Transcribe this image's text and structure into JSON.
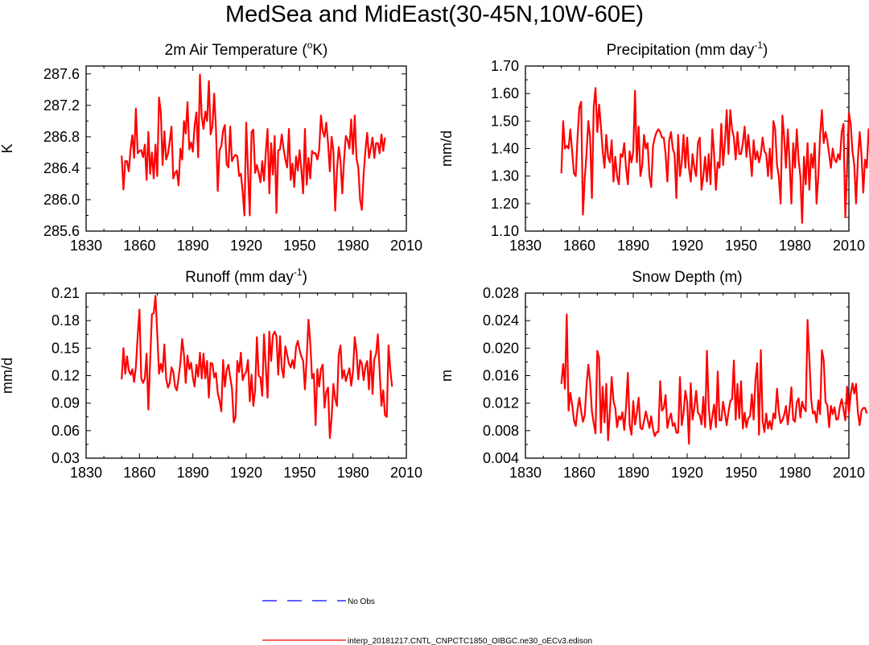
{
  "title": "MedSea and MidEast(30-45N,10W-60E)",
  "colors": {
    "model": "#ff0000",
    "obs": "#0000ff",
    "axis": "#000000"
  },
  "legend": [
    {
      "label": "No Obs",
      "color": "#0000ff",
      "style": "dashed"
    },
    {
      "label": "interp_20181217.CNTL_CNPCTC1850_OIBGC.ne30_oECv3.edison",
      "color": "#ff0000",
      "style": "solid"
    }
  ],
  "chart_data": [
    {
      "type": "line",
      "title": "2m Air Temperature (",
      "title_sup": "o",
      "title_tail": "K)",
      "xlabel": "",
      "ylabel": "K",
      "xlim": [
        1830,
        2010
      ],
      "ylim": [
        285.6,
        287.7
      ],
      "xticks": [
        1830,
        1860,
        1890,
        1920,
        1950,
        1980,
        2010
      ],
      "xtick_labels": [
        "1830",
        "1860",
        "1890",
        "1920",
        "1950",
        "1980",
        "2010"
      ],
      "yticks": [
        285.6,
        286.0,
        286.4,
        286.8,
        287.2,
        287.6
      ],
      "ytick_labels": [
        "285.6",
        "286.0",
        "286.4",
        "286.8",
        "287.2",
        "287.6"
      ],
      "x_start": 1850,
      "series": [
        {
          "name": "interp_20181217.CNTL_CNPCTC1850_OIBGC.ne30_oECv3.edison",
          "values": [
            286.56,
            286.13,
            286.49,
            286.49,
            286.36,
            286.64,
            286.82,
            286.53,
            287.16,
            286.59,
            286.62,
            286.63,
            286.54,
            286.7,
            286.25,
            286.86,
            286.33,
            286.6,
            286.27,
            286.7,
            286.3,
            287.3,
            287.11,
            286.44,
            286.87,
            286.51,
            286.58,
            286.74,
            286.93,
            286.27,
            286.34,
            286.37,
            286.18,
            286.65,
            286.51,
            287.0,
            286.84,
            287.24,
            286.64,
            286.73,
            286.61,
            286.94,
            287.11,
            286.54,
            287.59,
            287.06,
            286.9,
            287.12,
            287.0,
            287.51,
            286.83,
            286.93,
            287.35,
            286.9,
            286.11,
            286.63,
            286.68,
            286.88,
            286.95,
            286.45,
            286.41,
            286.93,
            286.49,
            286.54,
            286.57,
            286.55,
            286.3,
            286.33,
            286.1,
            285.8,
            286.98,
            286.37,
            285.8,
            286.86,
            286.89,
            286.34,
            286.44,
            286.34,
            286.22,
            286.49,
            286.24,
            286.6,
            286.9,
            286.08,
            286.72,
            286.32,
            286.81,
            285.83,
            286.63,
            286.64,
            286.83,
            286.65,
            286.51,
            286.41,
            286.9,
            286.25,
            286.46,
            286.16,
            286.55,
            286.37,
            286.63,
            286.38,
            286.08,
            286.9,
            286.19,
            286.53,
            286.27,
            286.62,
            286.59,
            286.59,
            286.51,
            286.63,
            287.07,
            286.87,
            286.8,
            286.98,
            286.72,
            286.36,
            286.8,
            286.62,
            285.86,
            286.37,
            286.67,
            286.49,
            286.08,
            286.51,
            286.81,
            286.76,
            286.65,
            287.02,
            286.58,
            287.07,
            286.52,
            286.41,
            286.0,
            285.87,
            286.32,
            286.63,
            286.85,
            286.53,
            286.65,
            286.79,
            286.53,
            286.72,
            286.72,
            286.59,
            286.83,
            286.62,
            286.79
          ]
        }
      ]
    },
    {
      "type": "line",
      "title": "Precipitation (mm day",
      "title_sup": "-1",
      "title_tail": ")",
      "xlabel": "",
      "ylabel": "mm/d",
      "xlim": [
        1830,
        2010
      ],
      "ylim": [
        1.1,
        1.7
      ],
      "xticks": [
        1830,
        1860,
        1890,
        1920,
        1950,
        1980,
        2010
      ],
      "xtick_labels": [
        "1830",
        "1860",
        "1890",
        "1920",
        "1950",
        "1980",
        "2010"
      ],
      "yticks": [
        1.1,
        1.2,
        1.3,
        1.4,
        1.5,
        1.6,
        1.7
      ],
      "ytick_labels": [
        "1.10",
        "1.20",
        "1.30",
        "1.40",
        "1.50",
        "1.60",
        "1.70"
      ],
      "x_start": 1850,
      "series": [
        {
          "name": "interp_20181217.CNTL_CNPCTC1850_OIBGC.ne30_oECv3.edison",
          "values": [
            1.31,
            1.5,
            1.4,
            1.41,
            1.4,
            1.47,
            1.39,
            1.31,
            1.3,
            1.44,
            1.55,
            1.57,
            1.16,
            1.29,
            1.38,
            1.5,
            1.44,
            1.22,
            1.55,
            1.62,
            1.46,
            1.56,
            1.48,
            1.39,
            1.33,
            1.45,
            1.37,
            1.35,
            1.43,
            1.28,
            1.37,
            1.3,
            1.27,
            1.38,
            1.37,
            1.42,
            1.33,
            1.27,
            1.39,
            1.35,
            1.39,
            1.61,
            1.35,
            1.48,
            1.3,
            1.34,
            1.45,
            1.4,
            1.42,
            1.3,
            1.26,
            1.41,
            1.44,
            1.46,
            1.47,
            1.46,
            1.44,
            1.44,
            1.38,
            1.28,
            1.43,
            1.46,
            1.4,
            1.38,
            1.22,
            1.45,
            1.3,
            1.35,
            1.45,
            1.33,
            1.44,
            1.33,
            1.28,
            1.38,
            1.33,
            1.3,
            1.42,
            1.44,
            1.25,
            1.3,
            1.37,
            1.28,
            1.38,
            1.27,
            1.47,
            1.38,
            1.25,
            1.35,
            1.33,
            1.49,
            1.34,
            1.42,
            1.54,
            1.38,
            1.54,
            1.47,
            1.44,
            1.36,
            1.46,
            1.38,
            1.38,
            1.42,
            1.48,
            1.37,
            1.45,
            1.38,
            1.3,
            1.43,
            1.36,
            1.39,
            1.35,
            1.38,
            1.44,
            1.39,
            1.38,
            1.3,
            1.4,
            1.29,
            1.5,
            1.47,
            1.34,
            1.3,
            1.2,
            1.52,
            1.44,
            1.33,
            1.47,
            1.35,
            1.2,
            1.42,
            1.33,
            1.47,
            1.36,
            1.3,
            1.13,
            1.37,
            1.27,
            1.42,
            1.25,
            1.38,
            1.33,
            1.42,
            1.2,
            1.3,
            1.45,
            1.54,
            1.42,
            1.46,
            1.43,
            1.38,
            1.33,
            1.4,
            1.36,
            1.35,
            1.38,
            1.36,
            1.46,
            1.49,
            1.15,
            1.33,
            1.53,
            1.49,
            1.39,
            1.34,
            1.2,
            1.36,
            1.46,
            1.38,
            1.24,
            1.36,
            1.33,
            1.47,
            1.43,
            1.38,
            1.33
          ]
        }
      ]
    },
    {
      "type": "line",
      "title": "Runoff (mm day",
      "title_sup": "-1",
      "title_tail": ")",
      "xlabel": "",
      "ylabel": "mm/d",
      "xlim": [
        1830,
        2010
      ],
      "ylim": [
        0.03,
        0.21
      ],
      "xticks": [
        1830,
        1860,
        1890,
        1920,
        1950,
        1980,
        2010
      ],
      "xtick_labels": [
        "1830",
        "1860",
        "1890",
        "1920",
        "1950",
        "1980",
        "2010"
      ],
      "yticks": [
        0.03,
        0.06,
        0.09,
        0.12,
        0.15,
        0.18,
        0.21
      ],
      "ytick_labels": [
        "0.03",
        "0.06",
        "0.09",
        "0.12",
        "0.15",
        "0.18",
        "0.21"
      ],
      "x_start": 1850,
      "series": [
        {
          "name": "interp_20181217.CNTL_CNPCTC1850_OIBGC.ne30_oECv3.edison",
          "values": [
            0.116,
            0.15,
            0.122,
            0.141,
            0.126,
            0.121,
            0.127,
            0.113,
            0.13,
            0.163,
            0.192,
            0.117,
            0.112,
            0.117,
            0.144,
            0.083,
            0.136,
            0.187,
            0.188,
            0.207,
            0.166,
            0.122,
            0.133,
            0.124,
            0.154,
            0.117,
            0.107,
            0.112,
            0.129,
            0.124,
            0.108,
            0.104,
            0.118,
            0.134,
            0.16,
            0.143,
            0.112,
            0.142,
            0.127,
            0.134,
            0.118,
            0.108,
            0.132,
            0.119,
            0.145,
            0.117,
            0.144,
            0.117,
            0.136,
            0.096,
            0.134,
            0.133,
            0.118,
            0.123,
            0.101,
            0.093,
            0.081,
            0.137,
            0.108,
            0.126,
            0.132,
            0.118,
            0.106,
            0.069,
            0.075,
            0.136,
            0.124,
            0.145,
            0.115,
            0.121,
            0.124,
            0.137,
            0.092,
            0.121,
            0.087,
            0.104,
            0.162,
            0.12,
            0.118,
            0.098,
            0.165,
            0.13,
            0.096,
            0.168,
            0.136,
            0.164,
            0.168,
            0.163,
            0.121,
            0.163,
            0.128,
            0.118,
            0.152,
            0.143,
            0.133,
            0.129,
            0.137,
            0.128,
            0.151,
            0.158,
            0.148,
            0.141,
            0.136,
            0.105,
            0.139,
            0.181,
            0.156,
            0.117,
            0.122,
            0.066,
            0.127,
            0.108,
            0.127,
            0.132,
            0.085,
            0.102,
            0.107,
            0.052,
            0.074,
            0.111,
            0.095,
            0.087,
            0.143,
            0.153,
            0.117,
            0.126,
            0.114,
            0.121,
            0.128,
            0.109,
            0.124,
            0.162,
            0.146,
            0.116,
            0.137,
            0.133,
            0.115,
            0.13,
            0.136,
            0.105,
            0.147,
            0.1,
            0.138,
            0.144,
            0.165,
            0.125,
            0.087,
            0.104,
            0.077,
            0.075,
            0.153,
            0.126,
            0.108
          ]
        }
      ]
    },
    {
      "type": "line",
      "title": "Snow Depth (m)",
      "title_sup": "",
      "title_tail": "",
      "xlabel": "",
      "ylabel": "m",
      "xlim": [
        1830,
        2010
      ],
      "ylim": [
        0.004,
        0.028
      ],
      "xticks": [
        1830,
        1860,
        1890,
        1920,
        1950,
        1980,
        2010
      ],
      "xtick_labels": [
        "1830",
        "1860",
        "1890",
        "1920",
        "1950",
        "1980",
        "2010"
      ],
      "yticks": [
        0.004,
        0.008,
        0.012,
        0.016,
        0.02,
        0.024,
        0.028
      ],
      "ytick_labels": [
        "0.004",
        "0.008",
        "0.012",
        "0.016",
        "0.020",
        "0.024",
        "0.028"
      ],
      "x_start": 1850,
      "series": [
        {
          "name": "interp_20181217.CNTL_CNPCTC1850_OIBGC.ne30_oECv3.edison",
          "values": [
            0.0148,
            0.0177,
            0.0141,
            0.0249,
            0.0109,
            0.0135,
            0.0118,
            0.0095,
            0.0087,
            0.0111,
            0.0128,
            0.0109,
            0.0093,
            0.0102,
            0.0145,
            0.0176,
            0.0151,
            0.0108,
            0.0091,
            0.0076,
            0.0196,
            0.0186,
            0.0077,
            0.0144,
            0.0092,
            0.0148,
            0.0066,
            0.0107,
            0.0158,
            0.0123,
            0.0113,
            0.0085,
            0.0101,
            0.0096,
            0.0107,
            0.0081,
            0.0115,
            0.0164,
            0.0088,
            0.0074,
            0.0123,
            0.0089,
            0.0106,
            0.0128,
            0.0084,
            0.0082,
            0.0094,
            0.0108,
            0.0096,
            0.0084,
            0.0101,
            0.0082,
            0.0072,
            0.0078,
            0.0078,
            0.0152,
            0.0109,
            0.0113,
            0.0132,
            0.0084,
            0.0097,
            0.0105,
            0.0087,
            0.0091,
            0.0077,
            0.0077,
            0.0158,
            0.0088,
            0.0105,
            0.0138,
            0.0122,
            0.0061,
            0.0149,
            0.0096,
            0.0113,
            0.0138,
            0.0106,
            0.0103,
            0.0089,
            0.0129,
            0.0085,
            0.0196,
            0.0115,
            0.0082,
            0.0101,
            0.0118,
            0.0085,
            0.0166,
            0.0095,
            0.0095,
            0.0122,
            0.0106,
            0.0088,
            0.0107,
            0.0123,
            0.0126,
            0.0182,
            0.0096,
            0.0148,
            0.0098,
            0.0152,
            0.0083,
            0.0106,
            0.0085,
            0.0098,
            0.0101,
            0.0133,
            0.0096,
            0.0154,
            0.0178,
            0.0074,
            0.0197,
            0.0094,
            0.0078,
            0.0105,
            0.0083,
            0.0094,
            0.0082,
            0.0105,
            0.0098,
            0.0141,
            0.0108,
            0.0091,
            0.0095,
            0.0103,
            0.0116,
            0.0089,
            0.0112,
            0.0143,
            0.0096,
            0.0093,
            0.0121,
            0.0127,
            0.0099,
            0.0122,
            0.0113,
            0.0108,
            0.0241,
            0.0185,
            0.0126,
            0.0105,
            0.0108,
            0.0092,
            0.0124,
            0.0104,
            0.0197,
            0.0182,
            0.0122,
            0.0117,
            0.0085,
            0.0116,
            0.0104,
            0.0114,
            0.0096,
            0.0097,
            0.0115,
            0.0126,
            0.0111,
            0.0095,
            0.0144,
            0.0105,
            0.0133,
            0.0149,
            0.0134,
            0.0148,
            0.0107,
            0.0088,
            0.0109,
            0.0113,
            0.0113,
            0.0105
          ]
        }
      ]
    }
  ]
}
